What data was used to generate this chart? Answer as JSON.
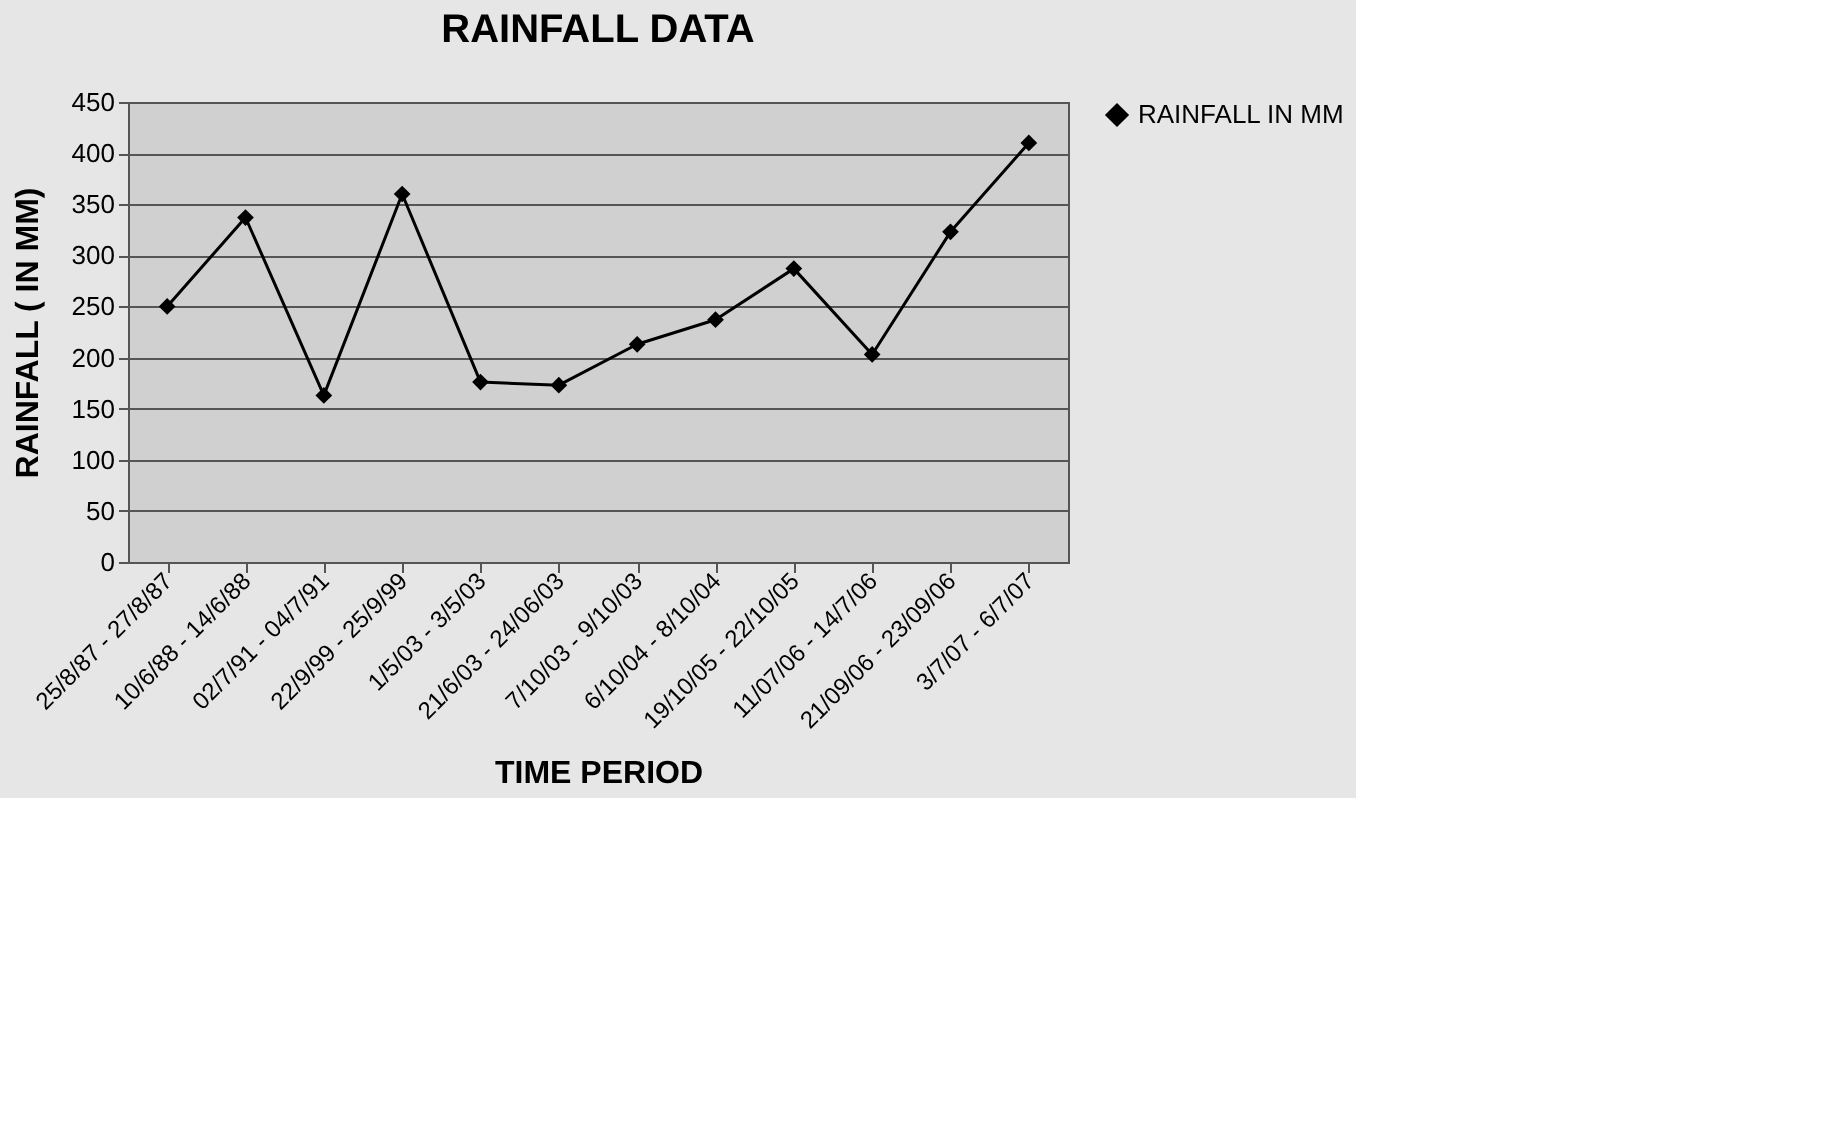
{
  "chart_data": {
    "type": "line",
    "title": "RAINFALL DATA",
    "xlabel": "TIME PERIOD",
    "ylabel": "RAINFALL ( IN MM)",
    "categories": [
      "25/8/87 - 27/8/87",
      "10/6/88 - 14/6/88",
      "02/7/91 - 04/7/91",
      "22/9/99 - 25/9/99",
      "1/5/03 - 3/5/03",
      "21/6/03 - 24/06/03",
      "7/10/03 - 9/10/03",
      "6/10/04 - 8/10/04",
      "19/10/05 - 22/10/05",
      "11/07/06 - 14/7/06",
      "21/09/06 - 23/09/06",
      "3/7/07 - 6/7/07"
    ],
    "series": [
      {
        "name": "RAINFALL IN MM",
        "color": "#000000",
        "values": [
          250,
          337,
          163,
          360,
          176,
          173,
          213,
          237,
          287,
          203,
          323,
          410
        ]
      }
    ],
    "ylim": [
      0,
      450
    ],
    "yticks": [
      0,
      50,
      100,
      150,
      200,
      250,
      300,
      350,
      400,
      450
    ],
    "grid": "y",
    "legend": "right",
    "marker": "diamond",
    "line_style": "solid"
  }
}
